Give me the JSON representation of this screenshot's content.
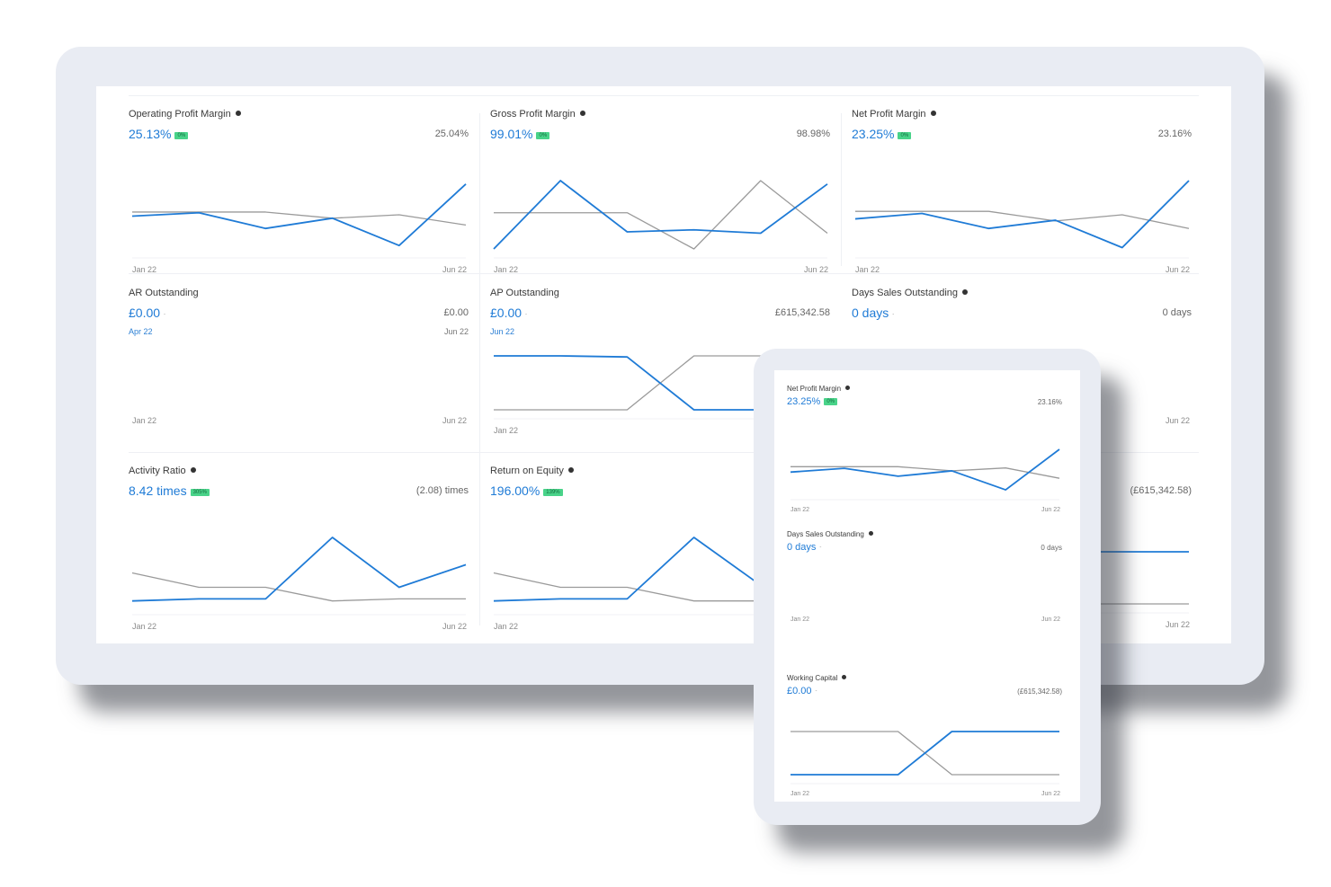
{
  "colors": {
    "accent": "#1f7bd6",
    "compare": "#9a9a9a",
    "badge": "#49d389"
  },
  "monitor": {
    "cards": [
      {
        "title": "Operating Profit Margin",
        "has_info": true,
        "value": "25.13%",
        "badge": "0%",
        "compare": "25.04%",
        "x_start": "Jan 22",
        "x_end": "Jun 22",
        "series": {
          "current": [
            0.52,
            0.47,
            0.7,
            0.55,
            0.95,
            0.05
          ],
          "previous": [
            0.46,
            0.46,
            0.46,
            0.55,
            0.5,
            0.65
          ],
          "marker_index": null
        }
      },
      {
        "title": "Gross Profit Margin",
        "has_info": true,
        "value": "99.01%",
        "badge": "0%",
        "compare": "98.98%",
        "x_start": "Jan 22",
        "x_end": "Jun 22",
        "series": {
          "current": [
            1.0,
            0.0,
            0.75,
            0.72,
            0.77,
            0.05
          ],
          "previous": [
            0.47,
            0.47,
            0.47,
            1.0,
            0.0,
            0.77
          ],
          "marker_index": null
        }
      },
      {
        "title": "Net Profit Margin",
        "has_info": true,
        "value": "23.25%",
        "badge": "0%",
        "compare": "23.16%",
        "x_start": "Jan 22",
        "x_end": "Jun 22",
        "series": {
          "current": [
            0.56,
            0.48,
            0.7,
            0.58,
            0.98,
            0.0
          ],
          "previous": [
            0.45,
            0.45,
            0.45,
            0.59,
            0.5,
            0.7
          ],
          "marker_index": null
        }
      },
      {
        "title": "AR Outstanding",
        "has_info": false,
        "value": "£0.00",
        "badge": "-",
        "compare": "£0.00",
        "range_start": "Apr 22",
        "range_end": "Jun 22",
        "x_start": "Jan 22",
        "x_end": "Jun 22",
        "series": {
          "current": [
            0.5,
            0.5,
            0.5,
            0.5,
            0.5,
            0.5
          ],
          "previous": null,
          "marker_index": 3
        }
      },
      {
        "title": "AP Outstanding",
        "has_info": false,
        "value": "£0.00",
        "badge": "-",
        "compare": "£615,342.58",
        "range_start": "Jun 22",
        "x_start": "Jan 22",
        "x_end": "Jun 22",
        "series": {
          "current": [
            0.0,
            0.0,
            0.02,
            1.0,
            1.0,
            1.0
          ],
          "previous": [
            1.0,
            1.0,
            1.0,
            0.0,
            0.0,
            0.0
          ],
          "marker_index": null
        }
      },
      {
        "title": "Days Sales Outstanding",
        "has_info": true,
        "value": "0 days",
        "badge": "-",
        "compare": "0 days",
        "x_start": "Jan 22",
        "x_end": "Jun 22",
        "series": {
          "current": [
            0.5,
            0.5,
            0.5,
            0.5,
            0.5,
            0.5
          ],
          "previous": null,
          "marker_index": null
        }
      },
      {
        "title": "Activity Ratio",
        "has_info": true,
        "value": "8.42 times",
        "badge": "305%",
        "compare": "(2.08) times",
        "x_start": "Jan 22",
        "x_end": "Jun 22",
        "series": {
          "current": [
            0.93,
            0.9,
            0.9,
            0.0,
            0.73,
            0.4
          ],
          "previous": [
            0.52,
            0.73,
            0.73,
            0.93,
            0.9,
            0.9
          ],
          "marker_index": null
        }
      },
      {
        "title": "Return on Equity",
        "has_info": true,
        "value": "196.00%",
        "badge": "139%",
        "compare": "",
        "x_start": "Jan 22",
        "x_end": "",
        "series": {
          "current": [
            0.93,
            0.9,
            0.9,
            0.0,
            0.7,
            0.7
          ],
          "previous": [
            0.52,
            0.73,
            0.73,
            0.93,
            0.93,
            0.93
          ],
          "marker_index": null
        }
      },
      {
        "title": "",
        "has_info": false,
        "value": "",
        "badge": "",
        "compare": "(£615,342.58)",
        "x_start": "",
        "x_end": "Jun 22",
        "series": {
          "current": [
            0.0,
            0.0,
            0.0,
            0.0,
            0.0,
            0.0
          ],
          "previous": [
            1.0,
            1.0,
            1.0,
            1.0,
            1.0,
            1.0
          ],
          "marker_index": null
        }
      }
    ]
  },
  "tablet": {
    "cards": [
      {
        "title": "Net Profit Margin",
        "has_info": true,
        "value": "23.25%",
        "badge": "0%",
        "compare": "23.16%",
        "x_start": "Jan 22",
        "x_end": "Jun 22",
        "series": {
          "current": [
            0.55,
            0.46,
            0.65,
            0.52,
            0.98,
            0.0
          ],
          "previous": [
            0.42,
            0.42,
            0.42,
            0.52,
            0.45,
            0.7
          ],
          "marker_index": null
        }
      },
      {
        "title": "Days Sales Outstanding",
        "has_info": true,
        "value": "0 days",
        "badge": "-",
        "compare": "0 days",
        "x_start": "Jan 22",
        "x_end": "Jun 22",
        "series": {
          "current": [
            0.5,
            0.5,
            0.5,
            0.5,
            0.5,
            0.5
          ],
          "previous": null,
          "marker_index": null
        }
      },
      {
        "title": "Working Capital",
        "has_info": true,
        "value": "£0.00",
        "badge": "-",
        "compare": "(£615,342.58)",
        "x_start": "Jan 22",
        "x_end": "Jun 22",
        "series": {
          "current": [
            1.0,
            1.0,
            1.0,
            0.0,
            0.0,
            0.0
          ],
          "previous": [
            0.0,
            0.0,
            0.0,
            1.0,
            1.0,
            1.0
          ],
          "marker_index": null
        }
      }
    ]
  }
}
